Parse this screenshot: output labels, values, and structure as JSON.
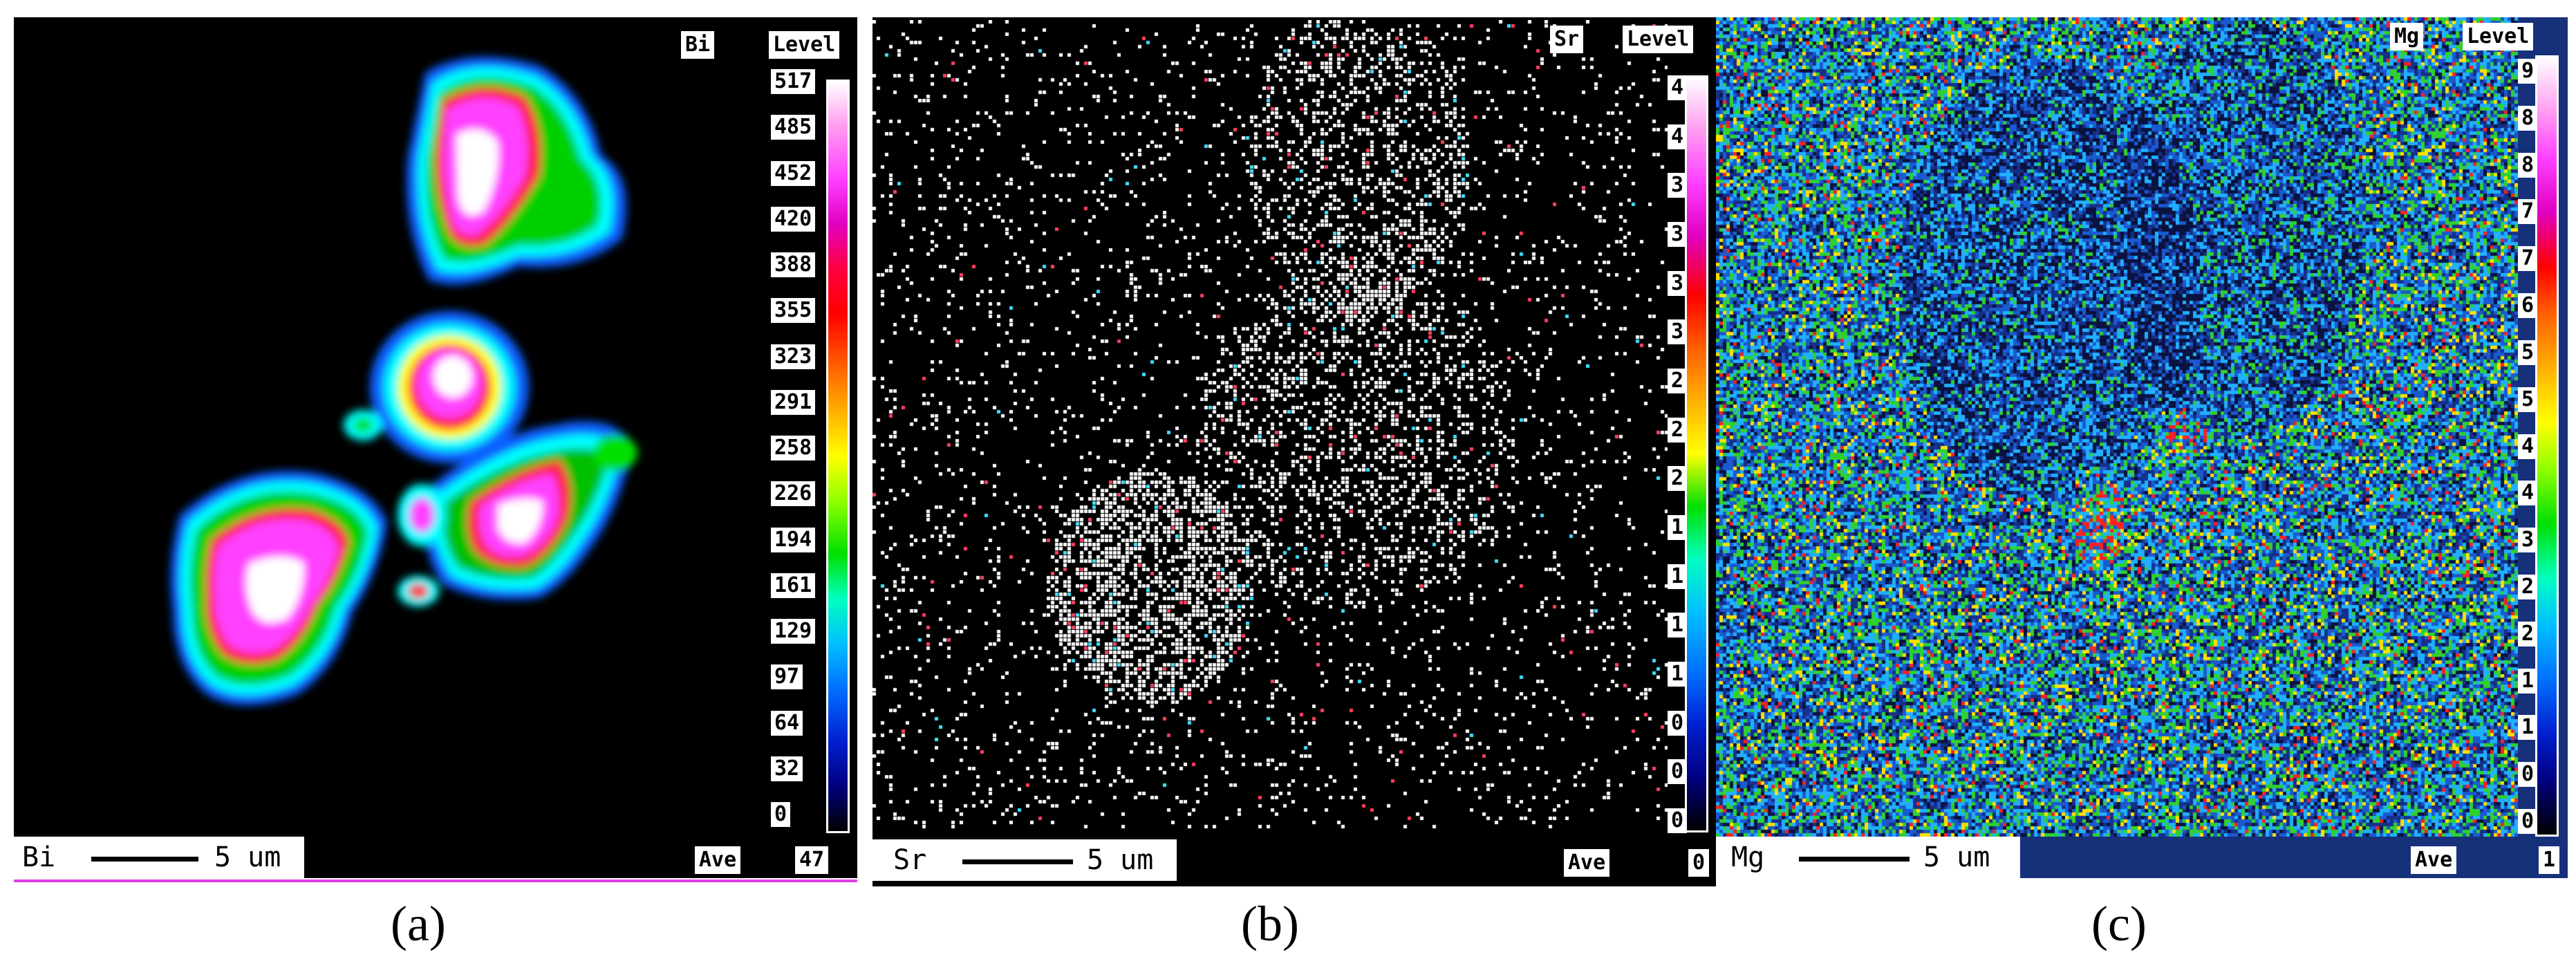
{
  "panels": [
    {
      "element": "Bi",
      "level_label": "Level",
      "ticks": [
        "517",
        "485",
        "452",
        "420",
        "388",
        "355",
        "323",
        "291",
        "258",
        "226",
        "194",
        "161",
        "129",
        "97",
        "64",
        "32",
        "0"
      ],
      "scale_text": "5 um",
      "ave": "Ave",
      "ave_value": "47",
      "caption": "(a)",
      "colorbar_colors": [
        "#ffffff",
        "#ff9cf0",
        "#ff40ff",
        "#e000c0",
        "#ff0040",
        "#ff0000",
        "#ff6000",
        "#ffb000",
        "#ffff00",
        "#90ff00",
        "#00e000",
        "#00ffc0",
        "#00c0ff",
        "#0070ff",
        "#0020d0",
        "#000080",
        "#000000"
      ]
    },
    {
      "element": "Sr",
      "level_label": "Level",
      "ticks": [
        "4",
        "4",
        "3",
        "3",
        "3",
        "3",
        "2",
        "2",
        "2",
        "1",
        "1",
        "1",
        "1",
        "0",
        "0",
        "0"
      ],
      "scale_text": "5 um",
      "ave": "Ave",
      "ave_value": "0",
      "caption": "(b)",
      "colorbar_colors": [
        "#ffffff",
        "#ff9cf0",
        "#ff40ff",
        "#e000c0",
        "#ff0000",
        "#ff6000",
        "#ffb000",
        "#ffff00",
        "#00e000",
        "#00ffc0",
        "#00c0ff",
        "#0070ff",
        "#0020d0",
        "#000080",
        "#000000"
      ]
    },
    {
      "element": "Mg",
      "level_label": "Level",
      "ticks": [
        "9",
        "8",
        "8",
        "7",
        "7",
        "6",
        "5",
        "5",
        "4",
        "4",
        "3",
        "2",
        "2",
        "1",
        "1",
        "0",
        "0"
      ],
      "scale_text": "5 um",
      "ave": "Ave",
      "ave_value": "1",
      "caption": "(c)",
      "colorbar_colors": [
        "#ffffff",
        "#ff9cf0",
        "#ff40ff",
        "#e000c0",
        "#ff0000",
        "#ff6000",
        "#ffb000",
        "#ffff00",
        "#90ff00",
        "#00e000",
        "#00ffc0",
        "#00c0ff",
        "#0070ff",
        "#0020d0",
        "#000080",
        "#000000"
      ]
    }
  ]
}
